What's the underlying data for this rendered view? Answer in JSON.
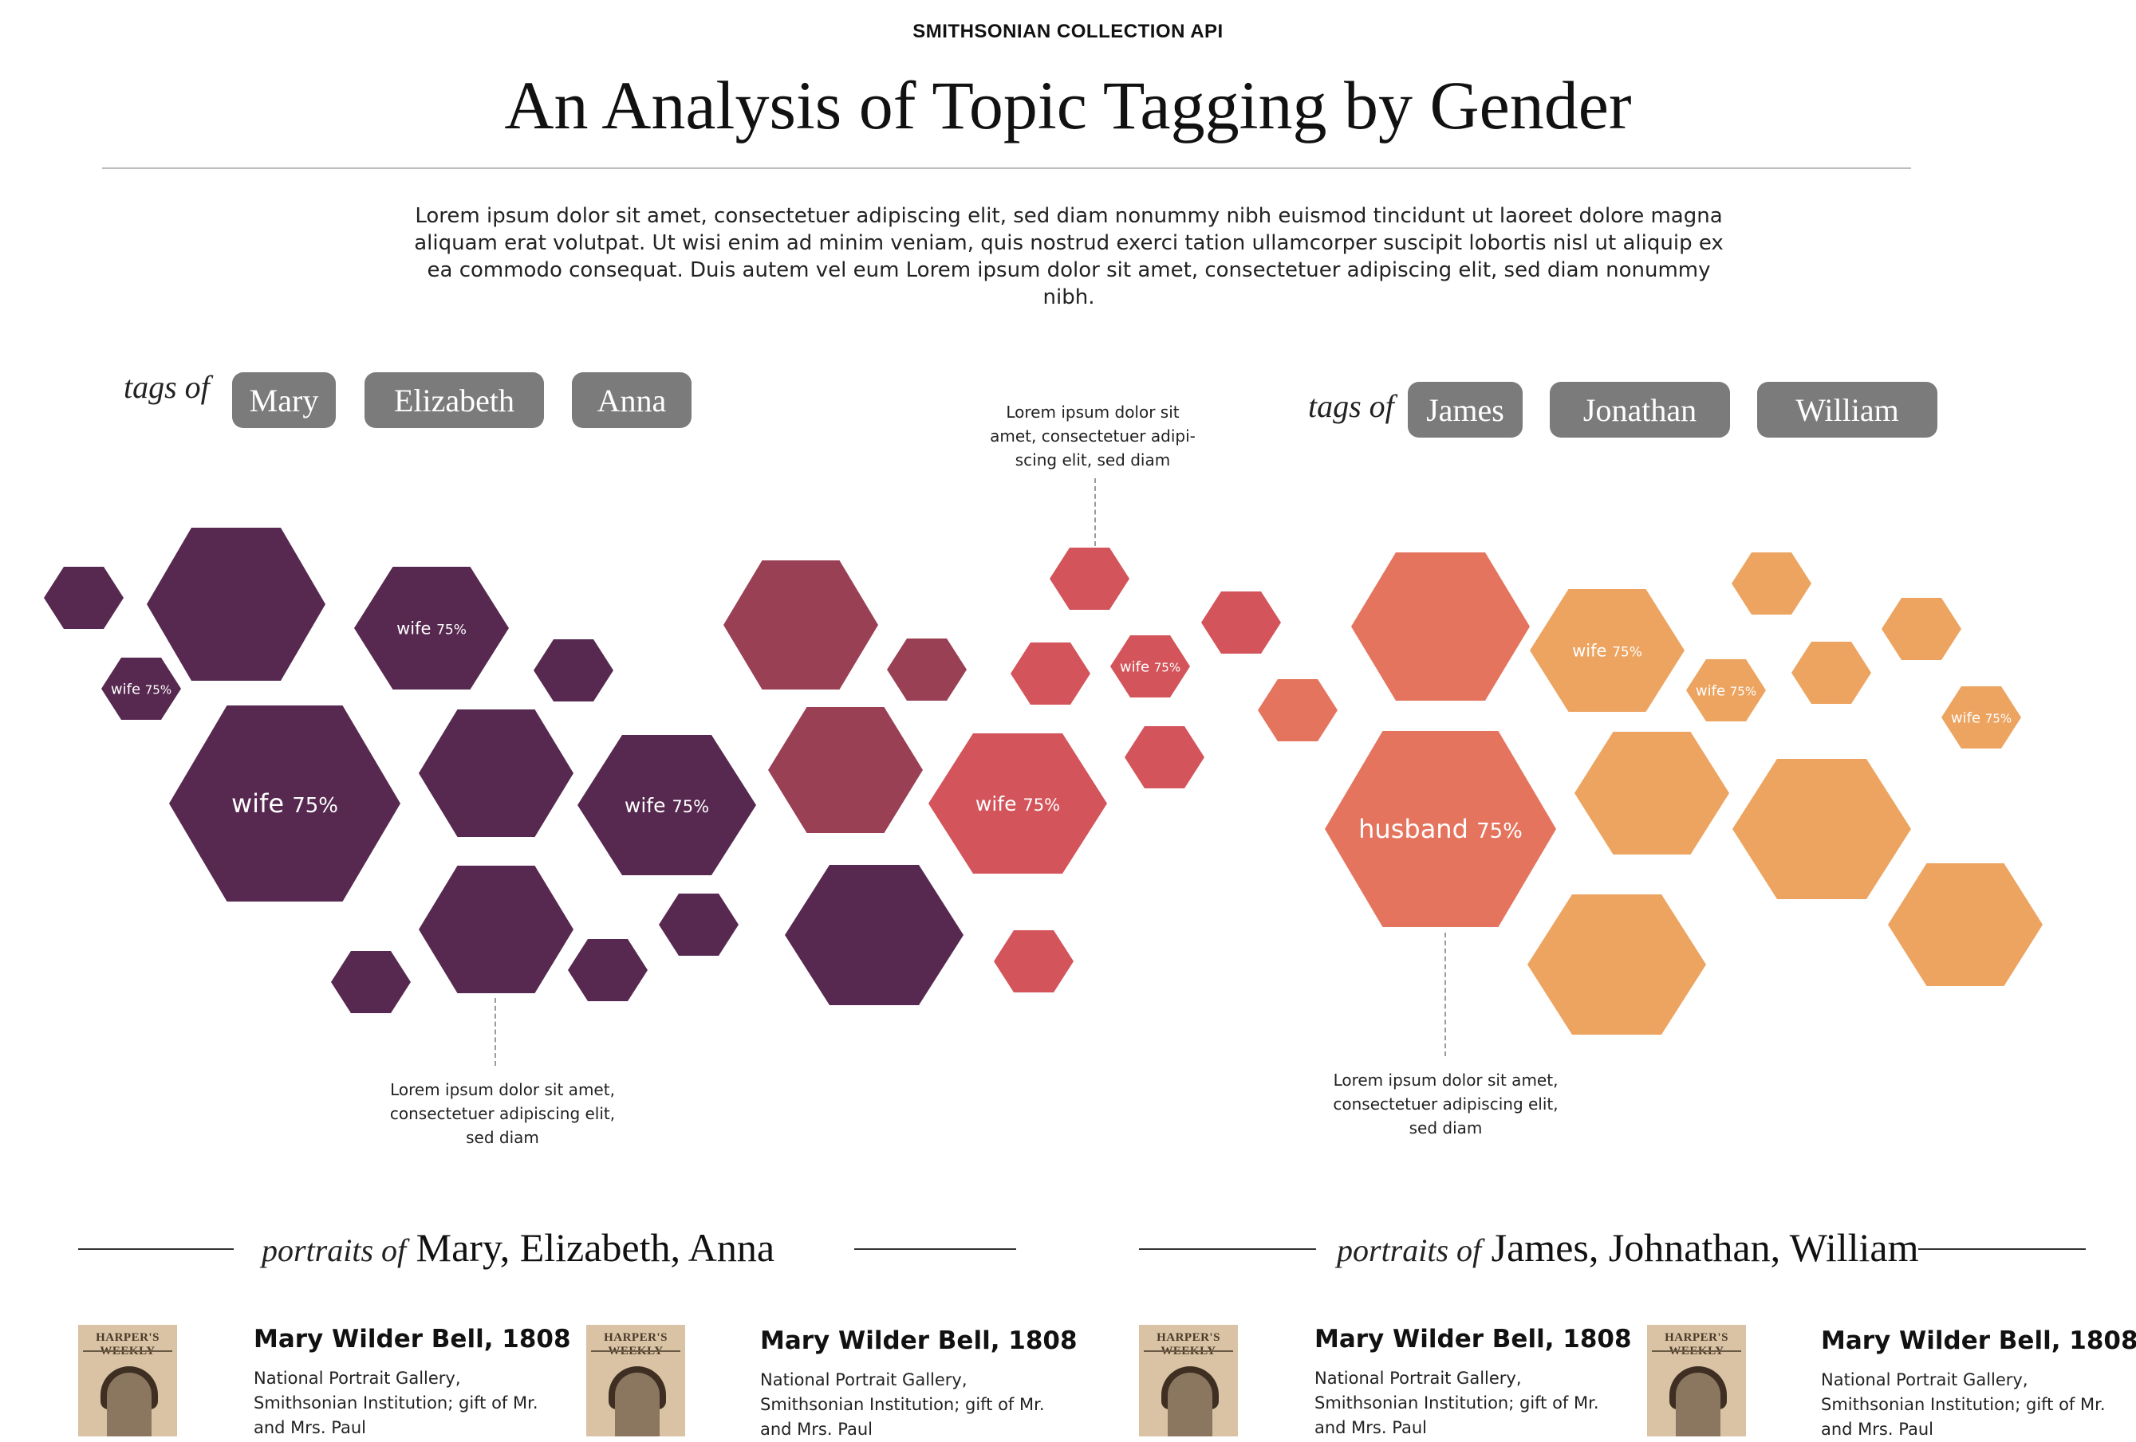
{
  "header": {
    "kicker": "SMITHSONIAN COLLECTION API",
    "title": "An Analysis of Topic Tagging by Gender",
    "intro": "Lorem ipsum dolor sit amet, consectetuer adipiscing elit, sed diam nonummy nibh euismod tincidunt ut laoreet dolore magna aliquam erat volutpat. Ut wisi enim ad minim veniam, quis nostrud exerci tation ullamcorper suscipit lobortis nisl ut aliquip ex ea commodo consequat. Duis autem vel eum Lorem ipsum dolor sit amet, consectetuer adipiscing elit, sed diam nonummy nibh."
  },
  "filters": {
    "female": {
      "label": "tags of",
      "names": [
        "Mary",
        "Elizabeth",
        "Anna"
      ]
    },
    "male": {
      "label": "tags of",
      "names": [
        "James",
        "Jonathan",
        "William"
      ]
    }
  },
  "annotations": {
    "top": "Lorem ipsum dolor sit amet, consectetuer adipi-scing elit, sed diam",
    "bottom_left": "Lorem ipsum dolor sit amet, consectetuer adipiscing elit, sed diam",
    "bottom_right": "Lorem ipsum dolor sit amet, consectetuer adipiscing elit, sed diam"
  },
  "palette": {
    "plum": "#572950",
    "wine": "#9a4055",
    "red": "#d3545a",
    "coral": "#e5745e",
    "orange": "#eca460"
  },
  "hexagons": [
    {
      "color": "plum"
    },
    {
      "color": "plum"
    },
    {
      "color": "plum",
      "tag": "wife",
      "pct": "75%"
    },
    {
      "color": "plum",
      "tag": "wife",
      "pct": "75%"
    },
    {
      "color": "plum"
    },
    {
      "color": "plum",
      "tag": "wife",
      "pct": "75%"
    },
    {
      "color": "plum"
    },
    {
      "color": "plum",
      "tag": "wife",
      "pct": "75%"
    },
    {
      "color": "plum"
    },
    {
      "color": "plum"
    },
    {
      "color": "plum"
    },
    {
      "color": "plum"
    },
    {
      "color": "wine"
    },
    {
      "color": "wine"
    },
    {
      "color": "wine"
    },
    {
      "color": "plum"
    },
    {
      "color": "red"
    },
    {
      "color": "red"
    },
    {
      "color": "red",
      "tag": "wife",
      "pct": "75%"
    },
    {
      "color": "red"
    },
    {
      "color": "red",
      "tag": "wife",
      "pct": "75%"
    },
    {
      "color": "red"
    },
    {
      "color": "red"
    },
    {
      "color": "coral"
    },
    {
      "color": "coral"
    },
    {
      "color": "coral",
      "tag": "husband",
      "pct": "75%"
    },
    {
      "color": "orange",
      "tag": "wife",
      "pct": "75%"
    },
    {
      "color": "orange"
    },
    {
      "color": "orange",
      "tag": "wife",
      "pct": "75%"
    },
    {
      "color": "orange"
    },
    {
      "color": "orange"
    },
    {
      "color": "orange"
    },
    {
      "color": "orange"
    },
    {
      "color": "orange"
    },
    {
      "color": "orange",
      "tag": "wife",
      "pct": "75%"
    },
    {
      "color": "orange"
    }
  ],
  "portraits": {
    "female": {
      "label": "portraits of",
      "names": "Mary, Elizabeth, Anna"
    },
    "male": {
      "label": "portraits of",
      "names": "James, Johnathan, William"
    },
    "cards": [
      {
        "title": "Mary Wilder Bell, 1808",
        "credit": "National Portrait Gallery, Smithsonian Institution; gift of Mr. and Mrs. Paul",
        "masthead": "HARPER'S WEEKLY"
      },
      {
        "title": "Mary Wilder Bell, 1808",
        "credit": "National Portrait Gallery, Smithsonian Institution; gift of Mr. and Mrs. Paul",
        "masthead": "HARPER'S WEEKLY"
      },
      {
        "title": "Mary Wilder Bell, 1808",
        "credit": "National Portrait Gallery, Smithsonian Institution; gift of Mr. and Mrs. Paul",
        "masthead": "HARPER'S WEEKLY"
      },
      {
        "title": "Mary Wilder Bell, 1808",
        "credit": "National Portrait Gallery, Smithsonian Institution; gift of Mr. and Mrs. Paul",
        "masthead": "HARPER'S WEEKLY"
      }
    ]
  }
}
